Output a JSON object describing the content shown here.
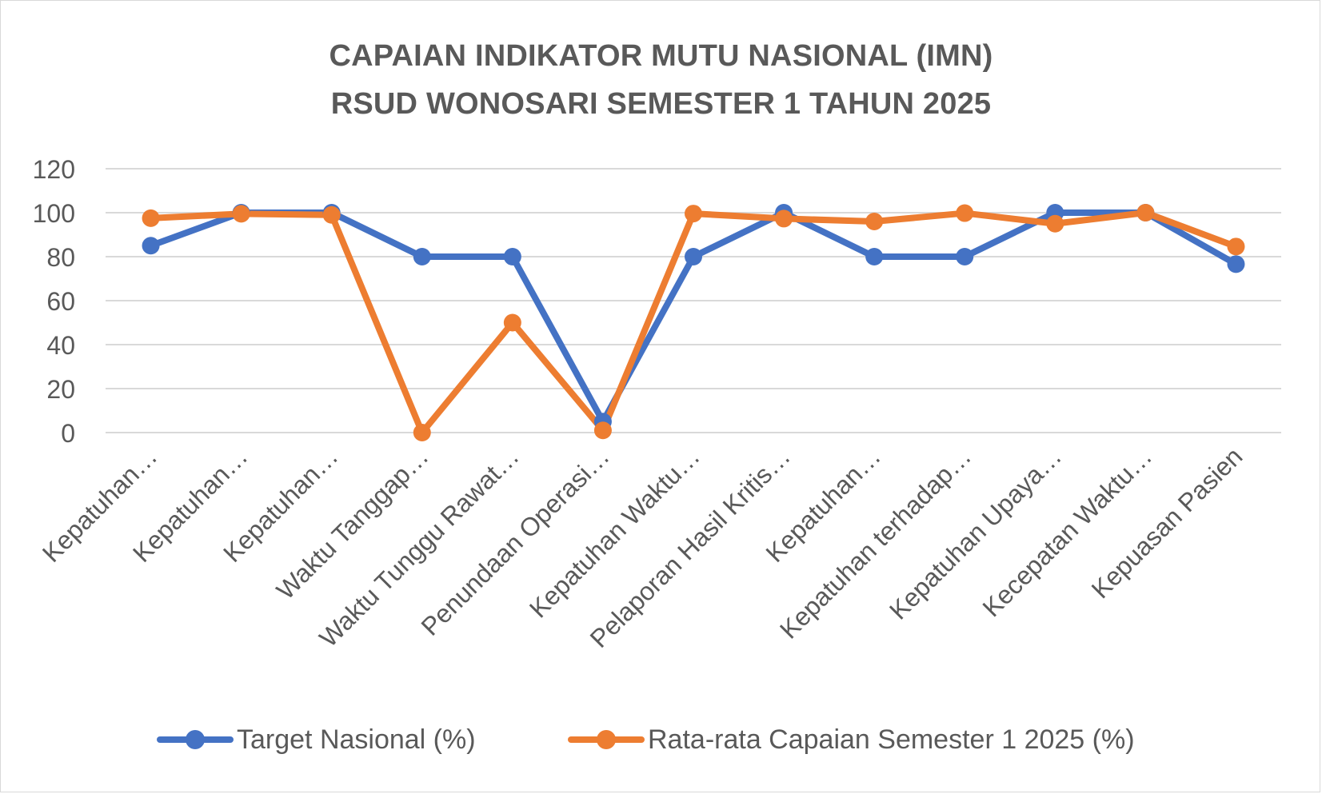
{
  "chart_data": {
    "type": "line",
    "title_lines": [
      "CAPAIAN INDIKATOR MUTU NASIONAL (IMN)",
      "RSUD WONOSARI SEMESTER 1 TAHUN 2025"
    ],
    "categories": [
      "Kepatuhan…",
      "Kepatuhan…",
      "Kepatuhan…",
      "Waktu Tanggap…",
      "Waktu Tunggu Rawat…",
      "Penundaan Operasi…",
      "Kepatuhan Waktu…",
      "Pelaporan Hasil Kritis…",
      "Kepatuhan…",
      "Kepatuhan terhadap…",
      "Kepatuhan Upaya…",
      "Kecepatan Waktu…",
      "Kepuasan Pasien"
    ],
    "series": [
      {
        "name": "Target Nasional (%)",
        "color": "#4472c4",
        "values": [
          85,
          100,
          100,
          80,
          80,
          5,
          80,
          100,
          80,
          80,
          100,
          100,
          76.61
        ]
      },
      {
        "name": "Rata-rata Capaian Semester 1 2025 (%)",
        "color": "#ed7d31",
        "values": [
          97.5,
          99.5,
          99,
          0,
          50,
          1,
          99.6,
          97.3,
          96,
          99.8,
          95,
          100,
          84.6
        ]
      }
    ],
    "y_ticks": [
      "0",
      "20",
      "40",
      "60",
      "80",
      "100",
      "120"
    ],
    "ylim": [
      0,
      120
    ],
    "y_step": 20,
    "grid": true,
    "legend_position": "bottom"
  }
}
